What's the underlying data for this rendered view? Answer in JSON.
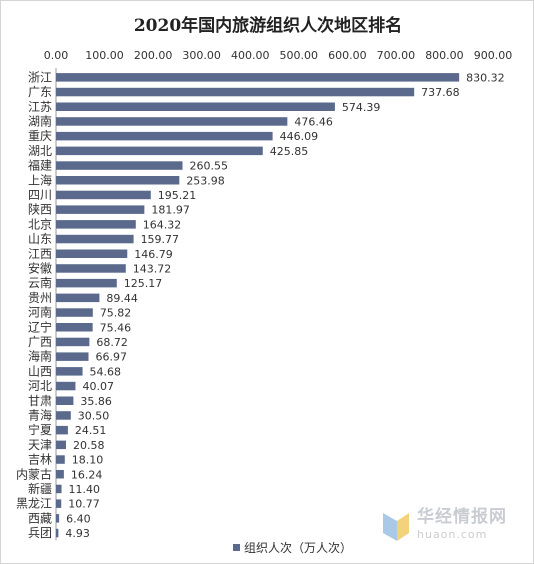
{
  "chart_data": {
    "type": "bar",
    "orientation": "horizontal",
    "title": "2020年国内旅游组织人次地区排名",
    "xlim": [
      0,
      900
    ],
    "x_ticks": [
      "0.00",
      "100.00",
      "200.00",
      "300.00",
      "400.00",
      "500.00",
      "600.00",
      "700.00",
      "800.00",
      "900.00"
    ],
    "x_tick_values": [
      0,
      100,
      200,
      300,
      400,
      500,
      600,
      700,
      800,
      900
    ],
    "categories": [
      "浙江",
      "广东",
      "江苏",
      "湖南",
      "重庆",
      "湖北",
      "福建",
      "上海",
      "四川",
      "陕西",
      "北京",
      "山东",
      "江西",
      "安徽",
      "云南",
      "贵州",
      "河南",
      "辽宁",
      "广西",
      "海南",
      "山西",
      "河北",
      "甘肃",
      "青海",
      "宁夏",
      "天津",
      "吉林",
      "内蒙古",
      "新疆",
      "黑龙江",
      "西藏",
      "兵团"
    ],
    "series": [
      {
        "name": "组织人次（万人次）",
        "values": [
          830.32,
          737.68,
          574.39,
          476.46,
          446.09,
          425.85,
          260.55,
          253.98,
          195.21,
          181.97,
          164.32,
          159.77,
          146.79,
          143.72,
          125.17,
          89.44,
          75.82,
          75.46,
          68.72,
          66.97,
          54.68,
          40.07,
          35.86,
          30.5,
          24.51,
          20.58,
          18.1,
          16.24,
          11.4,
          10.77,
          6.4,
          4.93
        ],
        "labels": [
          "830.32",
          "737.68",
          "574.39",
          "476.46",
          "446.09",
          "425.85",
          "260.55",
          "253.98",
          "195.21",
          "181.97",
          "164.32",
          "159.77",
          "146.79",
          "143.72",
          "125.17",
          "89.44",
          "75.82",
          "75.46",
          "68.72",
          "66.97",
          "54.68",
          "40.07",
          "35.86",
          "30.50",
          "24.51",
          "20.58",
          "18.10",
          "16.24",
          "11.40",
          "10.77",
          "6.40",
          "4.93"
        ],
        "color": "#5b6a8c"
      }
    ],
    "legend_position": "bottom",
    "grid": false
  },
  "watermark": {
    "cn": "华经情报网",
    "en": "huaon.com",
    "colors": [
      "#a9c9e6",
      "#f2d27a",
      "#c9cdd3"
    ]
  }
}
